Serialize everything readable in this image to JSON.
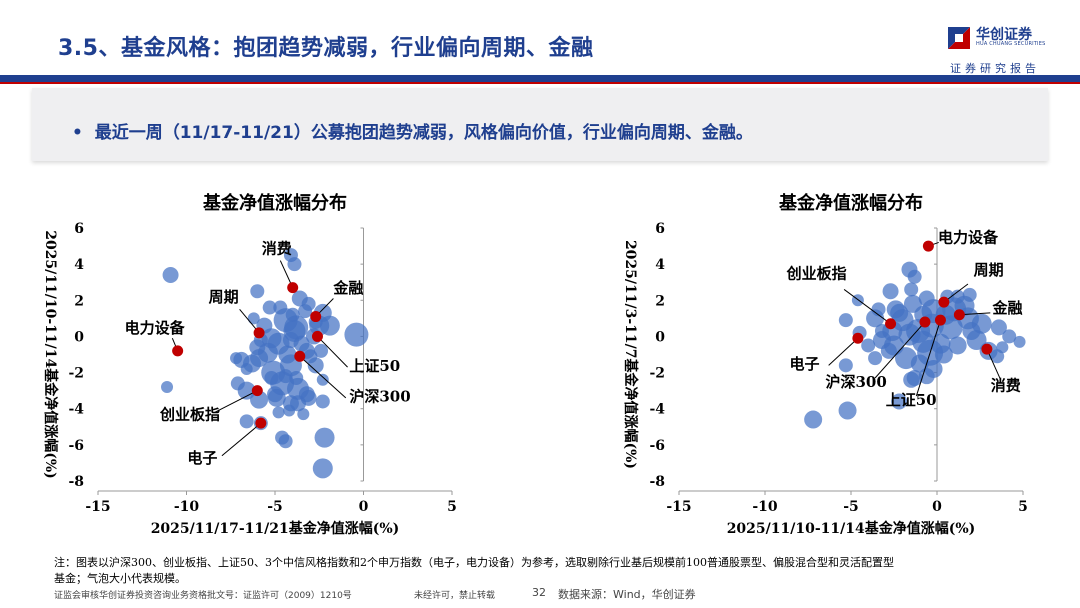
{
  "header": {
    "title": "3.5、基金风格：抱团趋势减弱，行业偏向周期、金融",
    "logo_name": "华创证券",
    "logo_en": "HUA CHUANG SECURITIES",
    "logo_sub": "证券研究报告"
  },
  "summary": {
    "bullet": "•",
    "text": "最近一周（11/17-11/21）公募抱团趋势减弱，风格偏向价值，行业偏向周期、金融。"
  },
  "colors": {
    "brand": "#1f3f8f",
    "accent": "#c00000",
    "bubble": "#4472c4",
    "ref": "#c00000"
  },
  "chart_data": [
    {
      "type": "scatter",
      "title": "基金净值涨幅分布",
      "xlabel": "2025/11/17-11/21基金净值涨幅(%)",
      "ylabel": "2025/11/10-11/14基金净值涨幅(%)",
      "xlim": [
        -15,
        5
      ],
      "ylim": [
        -8,
        6
      ],
      "xticks": [
        "-15",
        "-10",
        "-5",
        "0",
        "5"
      ],
      "yticks": [
        "-8",
        "-6",
        "-4",
        "-2",
        "0",
        "2",
        "4",
        "6"
      ],
      "series": [
        {
          "role": "funds",
          "points": [
            [
              -10.9,
              3.4,
              8
            ],
            [
              -4.1,
              4.5,
              7
            ],
            [
              -3.9,
              4.0,
              7
            ],
            [
              -2.3,
              -3.6,
              7
            ],
            [
              -2.3,
              -7.3,
              10
            ],
            [
              -2.2,
              -5.6,
              10
            ],
            [
              -5.8,
              -4.8,
              7
            ],
            [
              -6.6,
              -4.7,
              7
            ],
            [
              -7.1,
              -2.6,
              7
            ],
            [
              -6.0,
              2.5,
              7
            ],
            [
              -5.3,
              1.6,
              7
            ],
            [
              -4.7,
              1.6,
              7
            ],
            [
              -3.3,
              1.4,
              7
            ],
            [
              -3.6,
              2.1,
              8
            ],
            [
              -3.1,
              1.8,
              7
            ],
            [
              -2.3,
              1.3,
              9
            ],
            [
              -1.9,
              0.6,
              10
            ],
            [
              -0.4,
              0.1,
              12
            ],
            [
              -4.4,
              0.9,
              12
            ],
            [
              -3.8,
              0.5,
              12
            ],
            [
              -4.8,
              -0.4,
              11
            ],
            [
              -5.4,
              -0.9,
              10
            ],
            [
              -5.1,
              -2.0,
              12
            ],
            [
              -4.6,
              -2.6,
              12
            ],
            [
              -3.7,
              -2.9,
              11
            ],
            [
              -4.1,
              -1.6,
              11
            ],
            [
              -5.9,
              -1.2,
              9
            ],
            [
              -6.3,
              -1.5,
              9
            ],
            [
              -6.9,
              -1.3,
              8
            ],
            [
              -6.6,
              -3.0,
              9
            ],
            [
              -5.9,
              -3.5,
              9
            ],
            [
              -4.9,
              -3.4,
              9
            ],
            [
              -4.3,
              -1.0,
              9
            ],
            [
              -3.5,
              -0.4,
              8
            ],
            [
              -2.8,
              0.0,
              8
            ],
            [
              -3.2,
              -0.8,
              8
            ],
            [
              -2.7,
              -1.6,
              8
            ],
            [
              -6.0,
              -0.6,
              8
            ],
            [
              -4.1,
              -3.7,
              8
            ],
            [
              -3.7,
              -3.7,
              8
            ],
            [
              -3.1,
              -3.4,
              8
            ],
            [
              -4.6,
              -5.6,
              7
            ],
            [
              -4.4,
              -5.8,
              7
            ],
            [
              -3.2,
              -3.2,
              8
            ],
            [
              -5.2,
              -0.1,
              10
            ],
            [
              -3.9,
              0.3,
              11
            ],
            [
              -2.5,
              0.6,
              10
            ],
            [
              -11.1,
              -2.8,
              6
            ],
            [
              -7.2,
              -1.2,
              6
            ],
            [
              -6.6,
              -1.8,
              6
            ],
            [
              -6.2,
              1.0,
              6
            ],
            [
              -2.3,
              -2.4,
              6
            ],
            [
              -3.4,
              -4.3,
              6
            ],
            [
              -5.8,
              -0.2,
              7
            ],
            [
              -3.8,
              -2.3,
              7
            ],
            [
              -4.4,
              -2.2,
              7
            ],
            [
              -5.2,
              -2.3,
              7
            ],
            [
              -2.4,
              -0.8,
              7
            ],
            [
              -5.6,
              0.6,
              8
            ],
            [
              -2.7,
              0.8,
              7
            ],
            [
              -4.0,
              1.2,
              7
            ],
            [
              -3.0,
              -1.1,
              7
            ],
            [
              -5.0,
              -3.2,
              8
            ],
            [
              -4.8,
              -4.2,
              6
            ],
            [
              -4.2,
              -4.1,
              6
            ],
            [
              -4.1,
              -0.2,
              8
            ]
          ]
        },
        {
          "role": "reference",
          "points": [
            {
              "name": "消费",
              "x": -4.0,
              "y": 2.7
            },
            {
              "name": "金融",
              "x": -2.7,
              "y": 1.1
            },
            {
              "name": "周期",
              "x": -5.9,
              "y": 0.2
            },
            {
              "name": "上证50",
              "x": -2.6,
              "y": 0.0
            },
            {
              "name": "电力设备",
              "x": -10.5,
              "y": -0.8
            },
            {
              "name": "沪深300",
              "x": -3.6,
              "y": -1.1
            },
            {
              "name": "创业板指",
              "x": -6.0,
              "y": -3.0
            },
            {
              "name": "电子",
              "x": -5.8,
              "y": -4.8
            }
          ]
        }
      ]
    },
    {
      "type": "scatter",
      "title": "基金净值涨幅分布",
      "xlabel": "2025/11/10-11/14基金净值涨幅(%)",
      "ylabel": "2025/11/3-11/7基金净值涨幅(%)",
      "xlim": [
        -15,
        5
      ],
      "ylim": [
        -8,
        6
      ],
      "xticks": [
        "-15",
        "-10",
        "-5",
        "0",
        "5"
      ],
      "yticks": [
        "-8",
        "-6",
        "-4",
        "-2",
        "0",
        "2",
        "4",
        "6"
      ],
      "series": [
        {
          "role": "funds",
          "points": [
            [
              -1.6,
              3.7,
              8
            ],
            [
              -1.3,
              3.3,
              7
            ],
            [
              -2.7,
              2.5,
              8
            ],
            [
              -0.6,
              2.1,
              8
            ],
            [
              1.9,
              2.3,
              7
            ],
            [
              1.2,
              2.2,
              7
            ],
            [
              0.6,
              2.2,
              7
            ],
            [
              -4.6,
              2.0,
              6
            ],
            [
              -5.3,
              -1.6,
              7
            ],
            [
              -4.5,
              0.2,
              7
            ],
            [
              -3.6,
              1.0,
              9
            ],
            [
              -2.4,
              1.5,
              9
            ],
            [
              -1.4,
              1.8,
              9
            ],
            [
              -0.2,
              1.4,
              12
            ],
            [
              1.0,
              1.5,
              12
            ],
            [
              1.8,
              1.0,
              11
            ],
            [
              2.6,
              0.7,
              10
            ],
            [
              3.6,
              0.5,
              8
            ],
            [
              4.2,
              0.0,
              7
            ],
            [
              4.8,
              -0.3,
              6
            ],
            [
              -2.5,
              -0.5,
              10
            ],
            [
              -1.8,
              -1.2,
              11
            ],
            [
              -0.4,
              -0.9,
              13
            ],
            [
              -1.1,
              0.3,
              12
            ],
            [
              -2.0,
              0.9,
              11
            ],
            [
              0.8,
              0.5,
              12
            ],
            [
              2.3,
              -0.2,
              10
            ],
            [
              3.0,
              -0.8,
              9
            ],
            [
              3.5,
              -1.1,
              7
            ],
            [
              -3.2,
              -0.2,
              9
            ],
            [
              -2.8,
              -0.8,
              8
            ],
            [
              -1.3,
              -2.3,
              8
            ],
            [
              -0.6,
              -2.2,
              8
            ],
            [
              -1.0,
              -1.5,
              9
            ],
            [
              0.4,
              -1.0,
              9
            ],
            [
              1.2,
              -0.5,
              9
            ],
            [
              -1.5,
              2.6,
              7
            ],
            [
              -3.2,
              0.3,
              7
            ],
            [
              -4.0,
              -0.5,
              7
            ],
            [
              -5.3,
              0.9,
              7
            ],
            [
              -7.2,
              -4.6,
              9
            ],
            [
              -5.2,
              -4.1,
              9
            ],
            [
              -2.2,
              -3.6,
              8
            ],
            [
              -1.5,
              -2.4,
              8
            ],
            [
              -0.2,
              -1.8,
              9
            ],
            [
              0.2,
              -0.4,
              10
            ],
            [
              -2.2,
              1.3,
              9
            ],
            [
              1.6,
              1.7,
              10
            ],
            [
              -0.3,
              0.6,
              12
            ],
            [
              -1.6,
              0.1,
              11
            ],
            [
              -2.6,
              0.3,
              10
            ],
            [
              -0.8,
              -0.3,
              11
            ],
            [
              2.0,
              0.3,
              9
            ],
            [
              0.5,
              1.2,
              10
            ],
            [
              3.8,
              -0.6,
              6
            ],
            [
              -3.4,
              1.5,
              7
            ],
            [
              -0.8,
              1.2,
              9
            ],
            [
              -3.6,
              -1.2,
              7
            ]
          ]
        },
        {
          "role": "reference",
          "points": [
            {
              "name": "电力设备",
              "x": -0.5,
              "y": 5.0
            },
            {
              "name": "周期",
              "x": 0.4,
              "y": 1.9
            },
            {
              "name": "金融",
              "x": 1.3,
              "y": 1.2
            },
            {
              "name": "创业板指",
              "x": -2.7,
              "y": 0.7
            },
            {
              "name": "沪深300",
              "x": -0.7,
              "y": 0.8
            },
            {
              "name": "上证50",
              "x": 0.2,
              "y": 0.9
            },
            {
              "name": "电子",
              "x": -4.6,
              "y": -0.1
            },
            {
              "name": "消费",
              "x": 2.9,
              "y": -0.7
            }
          ]
        }
      ]
    }
  ],
  "footnote": {
    "line1": "注：图表以沪深300、创业板指、上证50、3个中信风格指数和2个申万指数（电子，电力设备）为参考，选取剔除行业基后规模前100普通股票型、偏股混合型和灵活配置型",
    "line2": "基金；气泡大小代表规模。"
  },
  "footer": {
    "license": "证监会审核华创证券投资咨询业务资格批文号：证监许可（2009）1210号",
    "notice": "未经许可，禁止转载",
    "page": "32",
    "source": "数据来源：Wind，华创证券"
  }
}
